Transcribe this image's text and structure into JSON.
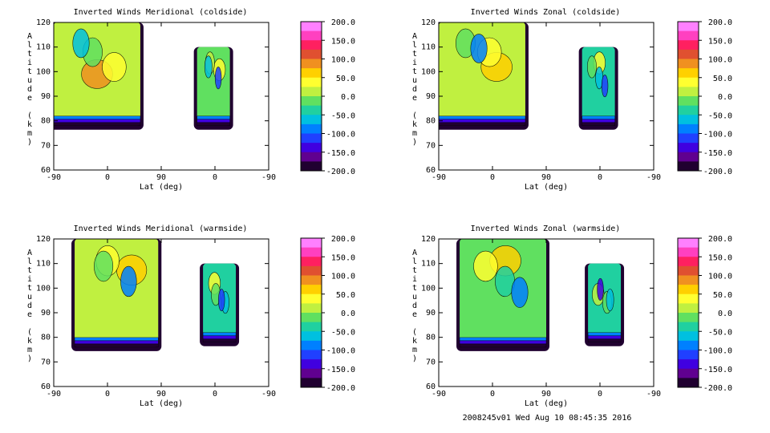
{
  "footer": "2008245v01 Wed Aug 10 08:45:35 2016",
  "colorbar": {
    "ticks": [
      "200.0",
      "150.0",
      "100.0",
      "50.0",
      "0.0",
      "-50.0",
      "-100.0",
      "-150.0",
      "-200.0"
    ],
    "colors": [
      "#ff80ff",
      "#ff40c0",
      "#ff2060",
      "#e05030",
      "#f09020",
      "#ffd000",
      "#ffff30",
      "#c0f040",
      "#60e060",
      "#20d0a0",
      "#00c0e0",
      "#0080ff",
      "#2040ff",
      "#4000e0",
      "#600090",
      "#200030"
    ]
  },
  "chart_data": [
    {
      "type": "heatmap",
      "title": "Inverted Winds Meridional (coldside)",
      "xlabel": "Lat (deg)",
      "ylabel": "Altitude (km)",
      "xticks": [
        "-90",
        "0",
        "90",
        "0",
        "-90"
      ],
      "yticks": [
        "60",
        "70",
        "80",
        "90",
        "100",
        "110",
        "120"
      ],
      "ylim": [
        60,
        120
      ],
      "zlim": [
        -200,
        200
      ],
      "region_a": {
        "lat_range": [
          -90,
          55
        ],
        "alt_range": [
          78,
          120
        ]
      },
      "region_b": {
        "lat_range": [
          -25,
          30
        ],
        "alt_range": [
          78,
          110
        ]
      },
      "typical_value": 20
    },
    {
      "type": "heatmap",
      "title": "Inverted Winds Zonal (coldside)",
      "xlabel": "Lat (deg)",
      "ylabel": "Altitude (km)",
      "xticks": [
        "-90",
        "0",
        "90",
        "0",
        "-90"
      ],
      "yticks": [
        "60",
        "70",
        "80",
        "90",
        "100",
        "110",
        "120"
      ],
      "ylim": [
        60,
        120
      ],
      "zlim": [
        -200,
        200
      ],
      "region_a": {
        "lat_range": [
          -90,
          55
        ],
        "alt_range": [
          78,
          120
        ]
      },
      "region_b": {
        "lat_range": [
          -25,
          30
        ],
        "alt_range": [
          78,
          110
        ]
      },
      "typical_value": 10
    },
    {
      "type": "heatmap",
      "title": "Inverted Winds Meridional (warmside)",
      "xlabel": "Lat (deg)",
      "ylabel": "Altitude (km)",
      "xticks": [
        "-90",
        "0",
        "90",
        "0",
        "-90"
      ],
      "yticks": [
        "60",
        "70",
        "80",
        "90",
        "100",
        "110",
        "120"
      ],
      "ylim": [
        60,
        120
      ],
      "zlim": [
        -200,
        200
      ],
      "region_a": {
        "lat_range": [
          -55,
          85
        ],
        "alt_range": [
          76,
          120
        ]
      },
      "region_b": {
        "lat_range": [
          -35,
          20
        ],
        "alt_range": [
          78,
          110
        ]
      },
      "typical_value": 10
    },
    {
      "type": "heatmap",
      "title": "Inverted Winds Zonal (warmside)",
      "xlabel": "Lat (deg)",
      "ylabel": "Altitude (km)",
      "xticks": [
        "-90",
        "0",
        "90",
        "0",
        "-90"
      ],
      "yticks": [
        "60",
        "70",
        "80",
        "90",
        "100",
        "110",
        "120"
      ],
      "ylim": [
        60,
        120
      ],
      "zlim": [
        -200,
        200
      ],
      "region_a": {
        "lat_range": [
          -55,
          90
        ],
        "alt_range": [
          76,
          120
        ]
      },
      "region_b": {
        "lat_range": [
          -35,
          20
        ],
        "alt_range": [
          78,
          110
        ]
      },
      "typical_value": 0
    }
  ]
}
